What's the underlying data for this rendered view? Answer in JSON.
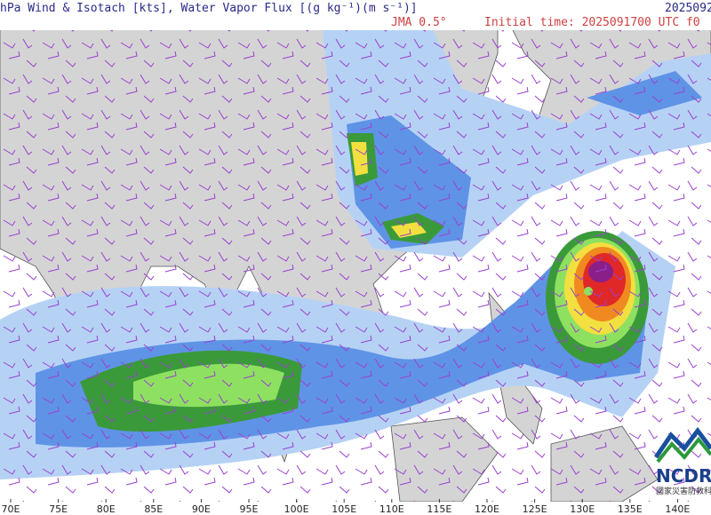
{
  "header": {
    "title": "hPa  Wind & Isotach [kts], Water Vapor Flux [(g kg⁻¹)(m s⁻¹)]",
    "valid_time": "2025092",
    "model": "JMA  0.5°",
    "initial_time": "Initial time: 2025091700 UTC f0"
  },
  "x_labels": [
    "70E",
    "75E",
    "80E",
    "85E",
    "90E",
    "95E",
    "100E",
    "105E",
    "110E",
    "115E",
    "120E",
    "125E",
    "130E",
    "135E",
    "140E"
  ],
  "logo": {
    "name": "NCDR",
    "subtitle": "國家災害防救科技"
  }
}
